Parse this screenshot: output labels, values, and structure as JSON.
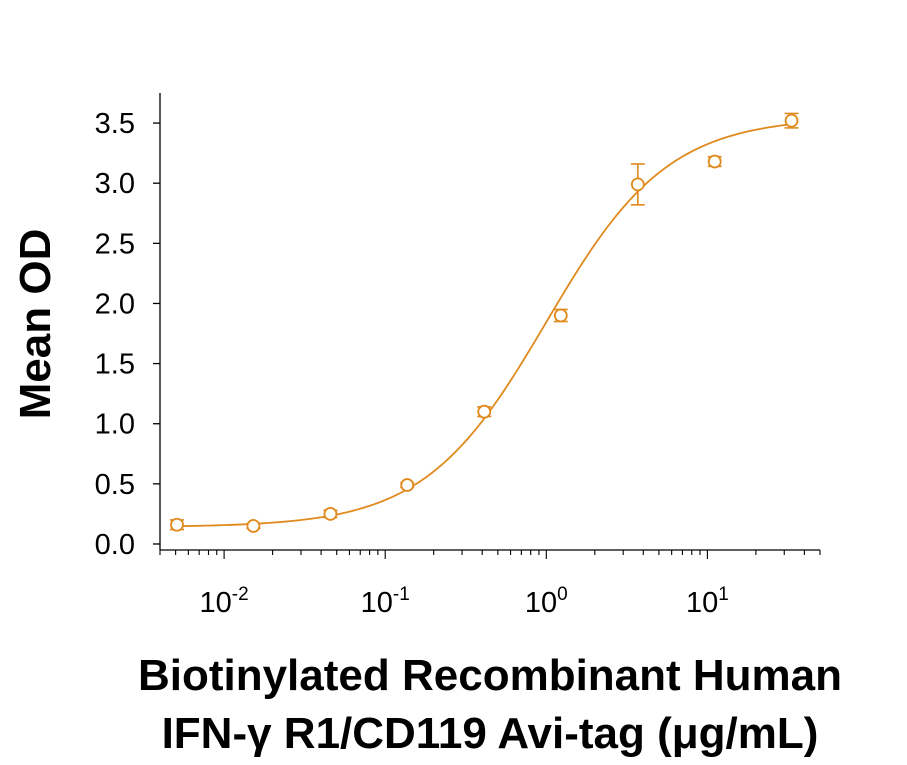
{
  "chart_data": {
    "type": "scatter",
    "title": "",
    "xlabel": [
      "Biotinylated Recombinant Human",
      "IFN-γ R1/CD119 Avi-tag (μg/mL)"
    ],
    "ylabel": "Mean OD",
    "x_scale": "log",
    "xlim": [
      0.004,
      50
    ],
    "ylim": [
      -0.05,
      3.75
    ],
    "x_ticks": [
      {
        "value": 0.01,
        "base": "10",
        "exp": "-2"
      },
      {
        "value": 0.1,
        "base": "10",
        "exp": "-1"
      },
      {
        "value": 1,
        "base": "10",
        "exp": "0"
      },
      {
        "value": 10,
        "base": "10",
        "exp": "1"
      }
    ],
    "y_ticks": [
      "0.0",
      "0.5",
      "1.0",
      "1.5",
      "2.0",
      "2.5",
      "3.0",
      "3.5"
    ],
    "series": [
      {
        "color": "#E08A1E",
        "points": [
          {
            "x": 0.0051,
            "y": 0.16,
            "err": 0.04
          },
          {
            "x": 0.0152,
            "y": 0.15,
            "err": 0.02
          },
          {
            "x": 0.0457,
            "y": 0.25,
            "err": 0.03
          },
          {
            "x": 0.137,
            "y": 0.49,
            "err": 0.02
          },
          {
            "x": 0.412,
            "y": 1.1,
            "err": 0.04
          },
          {
            "x": 1.23,
            "y": 1.9,
            "err": 0.05
          },
          {
            "x": 3.7,
            "y": 2.99,
            "err": 0.17
          },
          {
            "x": 11.1,
            "y": 3.18,
            "err": 0.04
          },
          {
            "x": 33.3,
            "y": 3.52,
            "err": 0.06
          }
        ]
      }
    ],
    "grid": false,
    "legend": "none"
  }
}
